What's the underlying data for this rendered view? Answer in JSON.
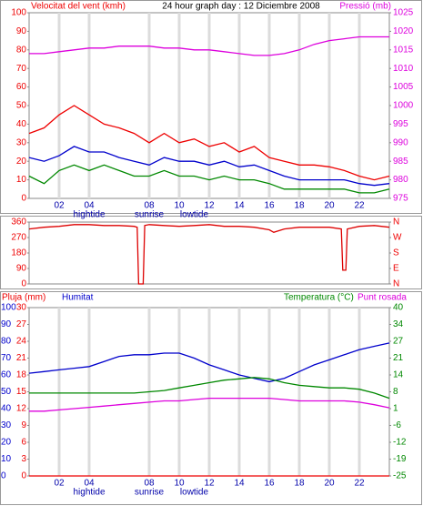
{
  "chart_data": [
    {
      "type": "line",
      "title": "24 hour graph day : 12 Diciembre 2008",
      "y_label": "Velocitat del vent (kmh)",
      "y_color": "#ee0000",
      "y2_color": "#dd00dd",
      "x": [
        0,
        1,
        2,
        3,
        4,
        5,
        6,
        7,
        8,
        9,
        10,
        11,
        12,
        13,
        14,
        15,
        16,
        17,
        18,
        19,
        20,
        21,
        22,
        23,
        24
      ],
      "xlim": [
        0,
        24
      ],
      "xticks": [
        {
          "value": 2,
          "label": "02"
        },
        {
          "value": 4,
          "label": "04"
        },
        {
          "value": 8,
          "label": "08"
        },
        {
          "value": 10,
          "label": "10"
        },
        {
          "value": 12,
          "label": "12"
        },
        {
          "value": 14,
          "label": "14"
        },
        {
          "value": 16,
          "label": "16"
        },
        {
          "value": 18,
          "label": "18"
        },
        {
          "value": 20,
          "label": "20"
        },
        {
          "value": 22,
          "label": "22"
        }
      ],
      "ylim": [
        0,
        100
      ],
      "yticks": [
        0,
        10,
        20,
        30,
        40,
        50,
        60,
        70,
        80,
        90,
        100
      ],
      "y2lim": [
        975,
        1025
      ],
      "y2ticks": [
        975,
        980,
        985,
        990,
        995,
        1000,
        1005,
        1010,
        1015,
        1020,
        1025
      ],
      "annotations": [
        {
          "text": "hightide",
          "x": 4
        },
        {
          "text": "sunrise",
          "x": 8
        },
        {
          "text": "lowtide",
          "x": 11
        }
      ],
      "series": [
        {
          "color": "#ee0000",
          "values": [
            35,
            38,
            45,
            50,
            45,
            40,
            38,
            35,
            30,
            35,
            30,
            32,
            28,
            30,
            25,
            28,
            22,
            20,
            18,
            18,
            17,
            15,
            12,
            10,
            12
          ]
        },
        {
          "color": "#0000cc",
          "values": [
            22,
            20,
            23,
            28,
            25,
            25,
            22,
            20,
            18,
            22,
            20,
            20,
            18,
            20,
            17,
            18,
            15,
            12,
            10,
            10,
            10,
            10,
            8,
            7,
            8
          ]
        },
        {
          "color": "#008800",
          "values": [
            12,
            8,
            15,
            18,
            15,
            18,
            15,
            12,
            12,
            15,
            12,
            12,
            10,
            12,
            10,
            10,
            8,
            5,
            5,
            5,
            5,
            5,
            3,
            3,
            5
          ]
        },
        {
          "name": "Pressió (mb)",
          "color": "#dd00dd",
          "axis": "y2",
          "values": [
            1014,
            1014,
            1014.5,
            1015,
            1015.5,
            1015.5,
            1016,
            1016,
            1016,
            1015.5,
            1015.5,
            1015,
            1015,
            1014.5,
            1014,
            1013.5,
            1013.5,
            1014,
            1015,
            1016.5,
            1017.5,
            1018,
            1018.5,
            1018.5,
            1018.5
          ]
        }
      ]
    },
    {
      "type": "line",
      "y_color": "#ee0000",
      "y2_color": "#ee0000",
      "x": [
        0,
        1,
        2,
        3,
        4,
        5,
        6,
        7,
        7.2,
        7.3,
        7.6,
        7.7,
        8,
        9,
        10,
        11,
        12,
        13,
        14,
        15,
        16,
        16.3,
        17,
        18,
        19,
        20,
        20.8,
        20.9,
        21.1,
        21.2,
        22,
        23,
        24
      ],
      "xlim": [
        0,
        24
      ],
      "ylim": [
        0,
        360
      ],
      "yticks": [
        0,
        90,
        180,
        270,
        360
      ],
      "y2lim": [
        0,
        360
      ],
      "y2ticks": [
        {
          "value": 360,
          "label": "N"
        },
        {
          "value": 270,
          "label": "W"
        },
        {
          "value": 180,
          "label": "S"
        },
        {
          "value": 90,
          "label": "E"
        },
        {
          "value": 0,
          "label": "N"
        }
      ],
      "series": [
        {
          "color": "#dd0000",
          "values": [
            320,
            330,
            335,
            345,
            345,
            340,
            340,
            335,
            330,
            0,
            0,
            340,
            345,
            340,
            335,
            340,
            345,
            335,
            335,
            330,
            315,
            300,
            320,
            330,
            330,
            330,
            320,
            80,
            80,
            320,
            335,
            340,
            330
          ]
        }
      ]
    },
    {
      "type": "line",
      "y_color": "#ee0000",
      "y2_color": "#008800",
      "y3_color": "#0000cc",
      "x": [
        0,
        1,
        2,
        3,
        4,
        5,
        6,
        7,
        8,
        9,
        10,
        11,
        12,
        13,
        14,
        15,
        16,
        17,
        18,
        19,
        20,
        21,
        22,
        23,
        24
      ],
      "xlim": [
        0,
        24
      ],
      "xticks": [
        {
          "value": 2,
          "label": "02"
        },
        {
          "value": 4,
          "label": "04"
        },
        {
          "value": 8,
          "label": "08"
        },
        {
          "value": 10,
          "label": "10"
        },
        {
          "value": 12,
          "label": "12"
        },
        {
          "value": 14,
          "label": "14"
        },
        {
          "value": 16,
          "label": "16"
        },
        {
          "value": 18,
          "label": "18"
        },
        {
          "value": 20,
          "label": "20"
        },
        {
          "value": 22,
          "label": "22"
        }
      ],
      "ylim": [
        0,
        30
      ],
      "yticks": [
        0,
        3,
        6,
        9,
        12,
        15,
        18,
        21,
        24,
        27,
        30
      ],
      "y3lim": [
        0,
        100
      ],
      "y3ticks": [
        0,
        10,
        20,
        30,
        40,
        50,
        60,
        70,
        80,
        90,
        100
      ],
      "y2lim": [
        -25,
        40
      ],
      "y2ticks": [
        {
          "value": -25,
          "label": "-25"
        },
        {
          "value": -18.5,
          "label": "-19"
        },
        {
          "value": -12,
          "label": "-12"
        },
        {
          "value": -5.5,
          "label": "-6"
        },
        {
          "value": 1,
          "label": "1"
        },
        {
          "value": 7.5,
          "label": "8"
        },
        {
          "value": 14,
          "label": "14"
        },
        {
          "value": 20.5,
          "label": "21"
        },
        {
          "value": 27,
          "label": "27"
        },
        {
          "value": 33.5,
          "label": "34"
        },
        {
          "value": 40,
          "label": "40"
        }
      ],
      "annotations": [
        {
          "text": "hightide",
          "x": 4
        },
        {
          "text": "sunrise",
          "x": 8
        },
        {
          "text": "lowtide",
          "x": 11
        }
      ],
      "series": [
        {
          "name": "Pluja (mm)",
          "color": "#ee0000",
          "values": [
            0,
            0,
            0,
            0,
            0,
            0,
            0,
            0,
            0,
            0,
            0,
            0,
            0,
            0,
            0,
            0,
            0,
            0,
            0,
            0,
            0,
            0,
            0,
            0,
            0
          ]
        },
        {
          "name": "Humitat",
          "color": "#0000cc",
          "axis": "y3",
          "values": [
            61,
            62,
            63,
            64,
            65,
            68,
            71,
            72,
            72,
            73,
            73,
            70,
            66,
            63,
            60,
            58,
            56,
            58,
            62,
            66,
            69,
            72,
            75,
            77,
            79
          ]
        },
        {
          "name": "Temperatura (°C)",
          "color": "#008800",
          "axis": "y2",
          "values": [
            7,
            7,
            7,
            7,
            7,
            7,
            7,
            7,
            7.5,
            8,
            9,
            10,
            11,
            12,
            12.5,
            13,
            12.5,
            11,
            10,
            9.5,
            9,
            9,
            8.5,
            7,
            5
          ]
        },
        {
          "name": "Punt rosada",
          "color": "#dd00dd",
          "axis": "y2",
          "values": [
            0,
            0,
            0.5,
            1,
            1.5,
            2,
            2.5,
            3,
            3.5,
            4,
            4,
            4.5,
            5,
            5,
            5,
            5,
            5,
            4.5,
            4,
            4,
            4,
            4,
            3.5,
            2.5,
            1.3
          ]
        }
      ]
    }
  ]
}
